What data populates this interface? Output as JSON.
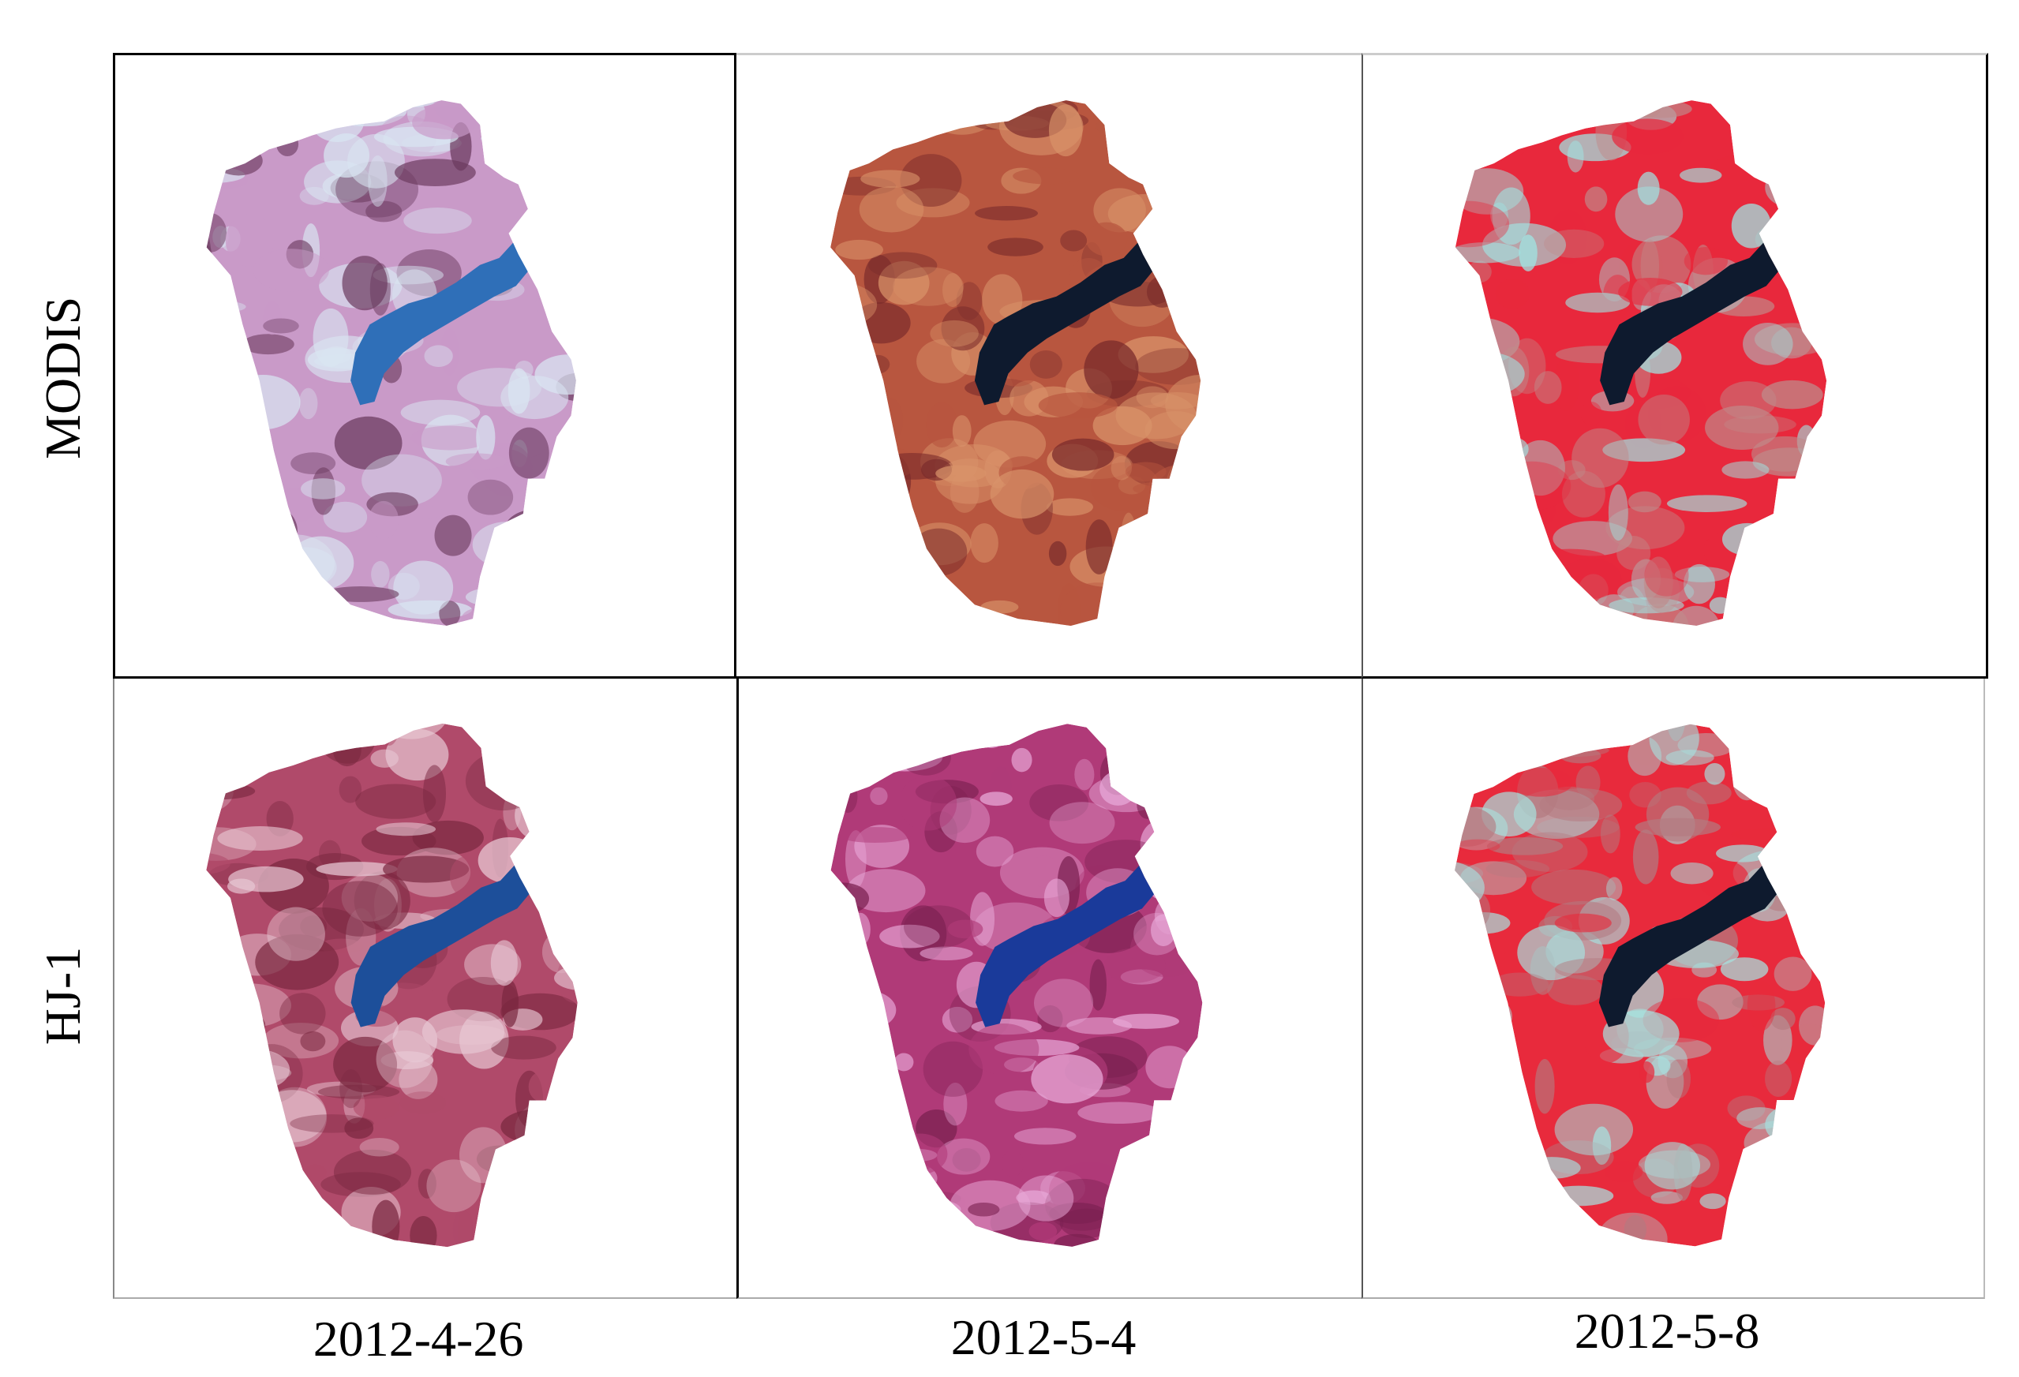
{
  "rows": [
    {
      "label": "MODIS"
    },
    {
      "label": "HJ-1"
    }
  ],
  "columns": [
    {
      "label": "2012-4-26"
    },
    {
      "label": "2012-5-4"
    },
    {
      "label": "2012-5-8"
    }
  ],
  "panels": [
    {
      "sensor": "MODIS",
      "date": "2012-4-26",
      "palette": {
        "base": "#c99ac8",
        "light": "#d9e6f2",
        "dark": "#6b3a5e",
        "water": "#2f6fb8"
      }
    },
    {
      "sensor": "MODIS",
      "date": "2012-5-4",
      "palette": {
        "base": "#b8563f",
        "light": "#d9936a",
        "dark": "#7a2b2b",
        "water": "#0e1a2e"
      }
    },
    {
      "sensor": "MODIS",
      "date": "2012-5-8",
      "palette": {
        "base": "#e8283c",
        "light": "#9fe6e4",
        "dark": "#c08a8a",
        "water": "#0e1a2e"
      }
    },
    {
      "sensor": "HJ-1",
      "date": "2012-4-26",
      "palette": {
        "base": "#b04a6a",
        "light": "#e8c8d4",
        "dark": "#7a2840",
        "water": "#1d4f9a"
      }
    },
    {
      "sensor": "HJ-1",
      "date": "2012-5-4",
      "palette": {
        "base": "#b03a78",
        "light": "#e8a8d8",
        "dark": "#7a2050",
        "water": "#1a3a9a"
      }
    },
    {
      "sensor": "HJ-1",
      "date": "2012-5-8",
      "palette": {
        "base": "#e82a3c",
        "light": "#a6e2e0",
        "dark": "#b47a80",
        "water": "#0e1a2e"
      }
    }
  ]
}
